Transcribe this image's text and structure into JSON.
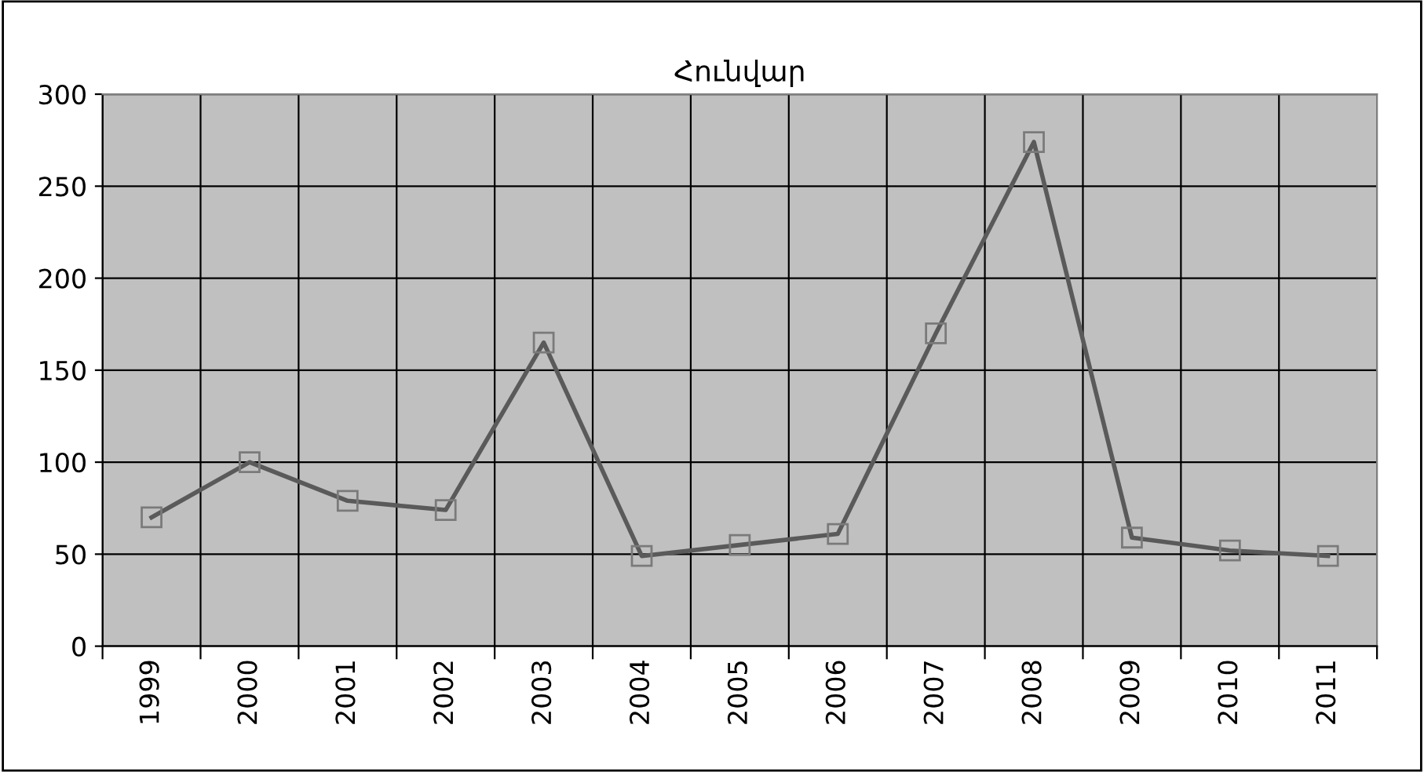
{
  "chart_data": {
    "type": "line",
    "title": "Հունվար",
    "categories": [
      "1999",
      "2000",
      "2001",
      "2002",
      "2003",
      "2004",
      "2005",
      "2006",
      "2007",
      "2008",
      "2009",
      "2010",
      "2011"
    ],
    "series": [
      {
        "color": "#5a5a5a",
        "values": [
          70,
          100,
          79,
          74,
          165,
          49,
          55,
          61,
          170,
          274,
          59,
          52,
          49
        ]
      }
    ],
    "ylim": [
      0,
      300
    ],
    "yticks": [
      0,
      50,
      100,
      150,
      200,
      250,
      300
    ],
    "grid": true,
    "marker": "square",
    "line_style": "solid"
  }
}
